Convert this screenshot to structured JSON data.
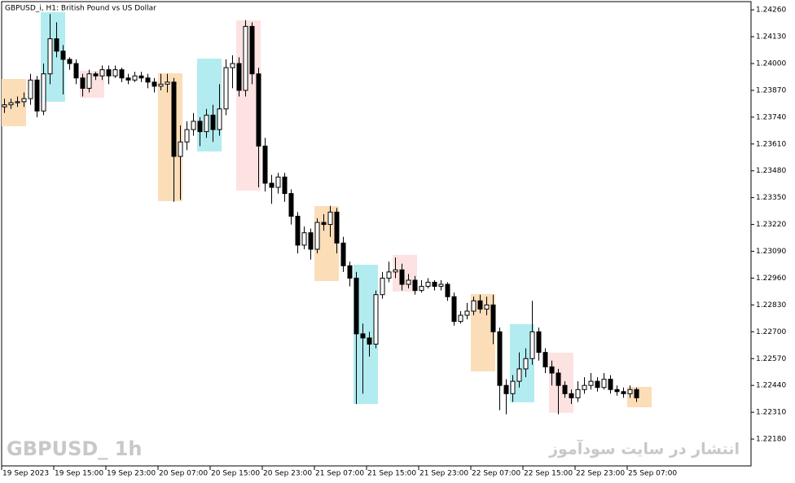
{
  "chart_data": {
    "type": "candlestick",
    "title": "GBPUSD_i, H1:  British Pound vs US Dollar",
    "watermark": "GBPUSD_ 1h",
    "site_note": "انتشار در سایت سودآموز",
    "up_color": "#ffffff",
    "down_color": "#000000",
    "ylim": [
      1.2205,
      1.243
    ],
    "yticks": [
      {
        "value": 1.2426,
        "label": "1.24260"
      },
      {
        "value": 1.2413,
        "label": "1.24130"
      },
      {
        "value": 1.24,
        "label": "1.24000"
      },
      {
        "value": 1.2387,
        "label": "1.23870"
      },
      {
        "value": 1.2374,
        "label": "1.23740"
      },
      {
        "value": 1.2361,
        "label": "1.23610"
      },
      {
        "value": 1.2348,
        "label": "1.23480"
      },
      {
        "value": 1.2335,
        "label": "1.23350"
      },
      {
        "value": 1.2322,
        "label": "1.23220"
      },
      {
        "value": 1.2309,
        "label": "1.23090"
      },
      {
        "value": 1.2296,
        "label": "1.22960"
      },
      {
        "value": 1.2283,
        "label": "1.22830"
      },
      {
        "value": 1.227,
        "label": "1.22700"
      },
      {
        "value": 1.2257,
        "label": "1.22570"
      },
      {
        "value": 1.2244,
        "label": "1.22440"
      },
      {
        "value": 1.2231,
        "label": "1.22310"
      },
      {
        "value": 1.2218,
        "label": "1.22180"
      }
    ],
    "xticks": [
      {
        "value": 0,
        "label": "19 Sep 2023"
      },
      {
        "value": 8,
        "label": "19 Sep 15:00"
      },
      {
        "value": 16,
        "label": "19 Sep 23:00"
      },
      {
        "value": 24,
        "label": "20 Sep 07:00"
      },
      {
        "value": 32,
        "label": "20 Sep 15:00"
      },
      {
        "value": 40,
        "label": "20 Sep 23:00"
      },
      {
        "value": 48,
        "label": "21 Sep 07:00"
      },
      {
        "value": 56,
        "label": "21 Sep 15:00"
      },
      {
        "value": 64,
        "label": "21 Sep 23:00"
      },
      {
        "value": 72,
        "label": "22 Sep 07:00"
      },
      {
        "value": 80,
        "label": "22 Sep 15:00"
      },
      {
        "value": 88,
        "label": "22 Sep 23:00"
      },
      {
        "value": 96,
        "label": "25 Sep 07:00"
      }
    ],
    "open": [
      1.2379,
      1.238,
      1.2381,
      1.23815,
      1.2383,
      1.2392,
      1.2377,
      1.2395,
      1.2412,
      1.2406,
      1.2402,
      1.24,
      1.2393,
      1.2388,
      1.2395,
      1.2394,
      1.2397,
      1.2394,
      1.2397,
      1.2393,
      1.2392,
      1.2394,
      1.2393,
      1.2391,
      1.2389,
      1.239,
      1.2391,
      1.2355,
      1.2362,
      1.2368,
      1.2372,
      1.2367,
      1.2375,
      1.2368,
      1.2378,
      1.2398,
      1.24,
      1.2387,
      1.2418,
      1.2395,
      1.236,
      1.2342,
      1.234,
      1.2345,
      1.2337,
      1.2326,
      1.2312,
      1.2318,
      1.231,
      1.2323,
      1.2322,
      1.2328,
      1.2313,
      1.2302,
      1.2296,
      1.2269,
      1.2267,
      1.2264,
      1.2288,
      1.2296,
      1.2299,
      1.23,
      1.2293,
      1.2295,
      1.229,
      1.2292,
      1.2294,
      1.2292,
      1.2293,
      1.2287,
      1.2275,
      1.2278,
      1.228,
      1.2285,
      1.2281,
      1.2283,
      1.227,
      1.2244,
      1.224,
      1.2246,
      1.2252,
      1.2257,
      1.227,
      1.226,
      1.2253,
      1.225,
      1.2244,
      1.224,
      1.2238,
      1.2242,
      1.2244,
      1.2246,
      1.2243,
      1.2247,
      1.2242,
      1.2241,
      1.224,
      1.2242
    ],
    "high": [
      1.2383,
      1.2383,
      1.2384,
      1.2386,
      1.2395,
      1.2394,
      1.24,
      1.2424,
      1.242,
      1.2409,
      1.2403,
      1.2402,
      1.2395,
      1.2397,
      1.2396,
      1.2399,
      1.2399,
      1.2399,
      1.2398,
      1.2395,
      1.2396,
      1.2396,
      1.2395,
      1.2393,
      1.2395,
      1.2395,
      1.2393,
      1.237,
      1.2372,
      1.2376,
      1.2374,
      1.2378,
      1.238,
      1.239,
      1.2402,
      1.2404,
      1.2403,
      1.2421,
      1.242,
      1.2398,
      1.2364,
      1.2346,
      1.2347,
      1.2347,
      1.2339,
      1.2328,
      1.2321,
      1.232,
      1.2325,
      1.2327,
      1.2331,
      1.233,
      1.2316,
      1.2304,
      1.2299,
      1.2274,
      1.227,
      1.229,
      1.2299,
      1.2304,
      1.2306,
      1.2303,
      1.2298,
      1.2297,
      1.2295,
      1.2296,
      1.2295,
      1.2295,
      1.2294,
      1.2289,
      1.228,
      1.2284,
      1.2287,
      1.2288,
      1.2287,
      1.2288,
      1.2272,
      1.2247,
      1.2249,
      1.226,
      1.2262,
      1.2285,
      1.2272,
      1.2262,
      1.2256,
      1.2252,
      1.2246,
      1.2242,
      1.2246,
      1.2248,
      1.225,
      1.2248,
      1.225,
      1.2249,
      1.2244,
      1.2243,
      1.2244,
      1.2243
    ],
    "low": [
      1.2376,
      1.2378,
      1.2379,
      1.2379,
      1.238,
      1.2374,
      1.2375,
      1.239,
      1.2403,
      1.2385,
      1.2397,
      1.239,
      1.2384,
      1.2386,
      1.2392,
      1.2392,
      1.239,
      1.2393,
      1.2391,
      1.239,
      1.2391,
      1.2391,
      1.2388,
      1.2386,
      1.2387,
      1.2386,
      1.2333,
      1.2334,
      1.2358,
      1.2365,
      1.236,
      1.2364,
      1.2362,
      1.2365,
      1.2375,
      1.2388,
      1.2384,
      1.2384,
      1.239,
      1.234,
      1.2338,
      1.2332,
      1.2337,
      1.2333,
      1.2322,
      1.2308,
      1.231,
      1.2305,
      1.2308,
      1.2319,
      1.2316,
      1.2308,
      1.2299,
      1.2292,
      1.2235,
      1.224,
      1.2258,
      1.2262,
      1.2286,
      1.2294,
      1.2296,
      1.229,
      1.2291,
      1.2288,
      1.2289,
      1.2291,
      1.229,
      1.229,
      1.2285,
      1.2273,
      1.2274,
      1.2276,
      1.2278,
      1.2279,
      1.2278,
      1.2264,
      1.2232,
      1.223,
      1.2236,
      1.2243,
      1.2248,
      1.2254,
      1.2256,
      1.225,
      1.2244,
      1.223,
      1.2238,
      1.2235,
      1.2236,
      1.224,
      1.2242,
      1.2241,
      1.2242,
      1.224,
      1.2239,
      1.2238,
      1.2238,
      1.2236
    ],
    "close": [
      1.238,
      1.2381,
      1.23815,
      1.2383,
      1.2392,
      1.2377,
      1.2395,
      1.2412,
      1.2406,
      1.2402,
      1.24,
      1.2393,
      1.2388,
      1.2395,
      1.2394,
      1.2397,
      1.2394,
      1.2397,
      1.2393,
      1.2392,
      1.2394,
      1.2393,
      1.2391,
      1.2389,
      1.239,
      1.2391,
      1.2355,
      1.2362,
      1.2368,
      1.2372,
      1.2367,
      1.2375,
      1.2368,
      1.2378,
      1.2398,
      1.24,
      1.2387,
      1.2418,
      1.2395,
      1.236,
      1.2342,
      1.234,
      1.2345,
      1.2337,
      1.2326,
      1.2312,
      1.2318,
      1.231,
      1.2323,
      1.2322,
      1.2328,
      1.2313,
      1.2302,
      1.2296,
      1.2269,
      1.2267,
      1.2264,
      1.2288,
      1.2296,
      1.2299,
      1.23,
      1.2293,
      1.2295,
      1.229,
      1.2292,
      1.2294,
      1.2292,
      1.2293,
      1.2287,
      1.2275,
      1.2278,
      1.228,
      1.2285,
      1.2281,
      1.2283,
      1.227,
      1.2244,
      1.224,
      1.2246,
      1.2252,
      1.2257,
      1.227,
      1.226,
      1.2253,
      1.225,
      1.2244,
      1.224,
      1.2238,
      1.2242,
      1.2244,
      1.2246,
      1.2243,
      1.2247,
      1.2242,
      1.2241,
      1.224,
      1.2242,
      1.2238
    ],
    "boxes": [
      {
        "start": 0,
        "end": 3,
        "high": 1.23925,
        "low": 1.23696,
        "color": "#fbddb8"
      },
      {
        "start": 6,
        "end": 9,
        "high": 1.24249,
        "low": 1.23815,
        "color": "#b2ecf0"
      },
      {
        "start": 12,
        "end": 15,
        "high": 1.23965,
        "low": 1.23834,
        "color": "#fde2e2"
      },
      {
        "start": 24,
        "end": 27,
        "high": 1.23953,
        "low": 1.23333,
        "color": "#fbddb8"
      },
      {
        "start": 30,
        "end": 33,
        "high": 1.24024,
        "low": 1.23574,
        "color": "#b2ecf0"
      },
      {
        "start": 36,
        "end": 39,
        "high": 1.24209,
        "low": 1.23384,
        "color": "#fde2e2"
      },
      {
        "start": 48,
        "end": 51,
        "high": 1.23309,
        "low": 1.22946,
        "color": "#fbddb8"
      },
      {
        "start": 54,
        "end": 57,
        "high": 1.23025,
        "low": 1.2235,
        "color": "#b2ecf0"
      },
      {
        "start": 60,
        "end": 63,
        "high": 1.23073,
        "low": 1.22895,
        "color": "#fde2e2"
      },
      {
        "start": 72,
        "end": 75,
        "high": 1.22883,
        "low": 1.22508,
        "color": "#fbddb8"
      },
      {
        "start": 78,
        "end": 81,
        "high": 1.22737,
        "low": 1.22358,
        "color": "#b2ecf0"
      },
      {
        "start": 84,
        "end": 87,
        "high": 1.22599,
        "low": 1.22307,
        "color": "#fde2e2"
      },
      {
        "start": 96,
        "end": 99,
        "high": 1.22433,
        "low": 1.22334,
        "color": "#fbddb8"
      }
    ]
  }
}
